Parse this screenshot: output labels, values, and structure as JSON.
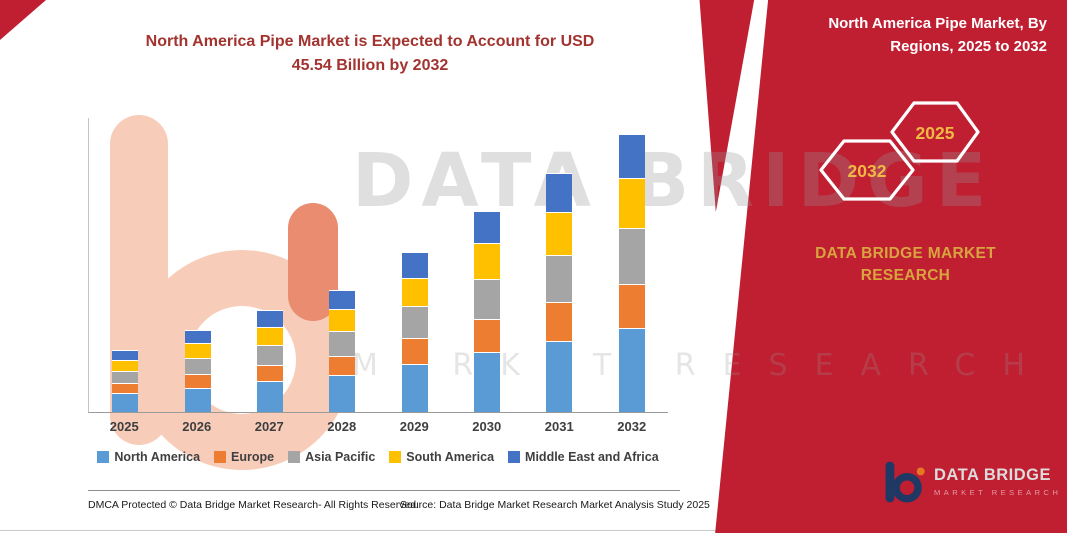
{
  "colors": {
    "accent_red": "#C01E31",
    "title_red": "#A2332F",
    "gold": "#D8A43F",
    "gold_bright": "#F0B844",
    "navy": "#203864",
    "orange": "#E87722"
  },
  "title": {
    "line1": "North America Pipe Market is Expected to Account for USD",
    "line2": "45.54 Billion by 2032"
  },
  "panel": {
    "header_lines": [
      "North America Pipe Market, By",
      "Regions, 2025 to 2032"
    ],
    "hex_left": "2032",
    "hex_right": "2025",
    "brand_line1": "DATA BRIDGE MARKET",
    "brand_line2": "RESEARCH",
    "logo_name": "DATA BRIDGE",
    "logo_tagline": "MARKET RESEARCH"
  },
  "watermark": {
    "line1": "DATA BRIDGE",
    "line2": "MARKET RESEARCH"
  },
  "footer": {
    "dmca": "DMCA Protected © Data Bridge Market Research-  All Rights Reserved.",
    "source": "Source: Data Bridge Market Research  Market Analysis Study 2025"
  },
  "chart_data": {
    "type": "bar",
    "stacked": true,
    "title": "North America Pipe Market is Expected to Account for USD 45.54 Billion by 2032",
    "unit": "USD Billion",
    "categories": [
      "2025",
      "2026",
      "2027",
      "2028",
      "2029",
      "2030",
      "2031",
      "2032"
    ],
    "series": [
      {
        "name": "North America",
        "color": "#5B9BD5",
        "values": [
          3.1,
          4.0,
          5.0,
          6.0,
          7.9,
          9.9,
          11.7,
          13.7
        ]
      },
      {
        "name": "Europe",
        "color": "#ED7D31",
        "values": [
          1.6,
          2.2,
          2.7,
          3.2,
          4.2,
          5.3,
          6.3,
          7.3
        ]
      },
      {
        "name": "Asia Pacific",
        "color": "#A5A5A5",
        "values": [
          2.0,
          2.7,
          3.3,
          4.0,
          5.2,
          6.6,
          7.8,
          9.1
        ]
      },
      {
        "name": "South America",
        "color": "#FFC000",
        "values": [
          1.8,
          2.4,
          3.0,
          3.6,
          4.7,
          5.9,
          7.0,
          8.2
        ]
      },
      {
        "name": "Middle East and Africa",
        "color": "#4472C4",
        "values": [
          1.7,
          2.1,
          2.7,
          3.2,
          4.2,
          5.2,
          6.3,
          7.24
        ]
      }
    ],
    "ylim": [
      0,
      46
    ],
    "grid": false,
    "legend_position": "bottom",
    "xlabel": "",
    "ylabel": ""
  }
}
